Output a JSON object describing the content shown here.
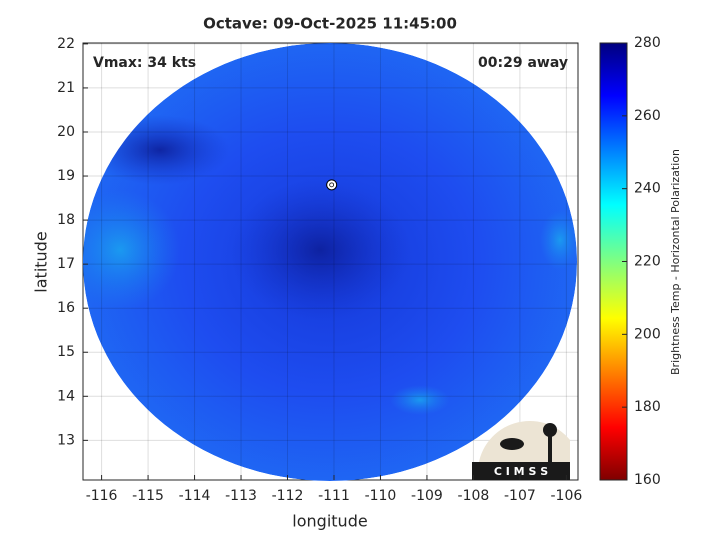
{
  "chart_data": {
    "type": "image",
    "title": "Octave: 09-Oct-2025 11:45:00",
    "xlabel": "longitude",
    "ylabel": "latitude",
    "xlim": [
      -116.4,
      -105.75
    ],
    "ylim": [
      12.1,
      22.02
    ],
    "xticks": [
      -116,
      -115,
      -114,
      -113,
      -112,
      -111,
      -110,
      -109,
      -108,
      -107,
      -106
    ],
    "yticks": [
      13,
      14,
      15,
      16,
      17,
      18,
      19,
      20,
      21,
      22
    ],
    "grid": true,
    "annotation_left": "Vmax: 34 kts",
    "annotation_right": "00:29 away",
    "center": {
      "lon": -111.05,
      "lat": 18.8
    },
    "colorbar": {
      "label": "Brightness Temp - Horizontal Polarization",
      "lim": [
        160,
        280
      ],
      "ticks": [
        160,
        180,
        200,
        220,
        240,
        260,
        280
      ]
    },
    "logo": "C I M S S"
  }
}
